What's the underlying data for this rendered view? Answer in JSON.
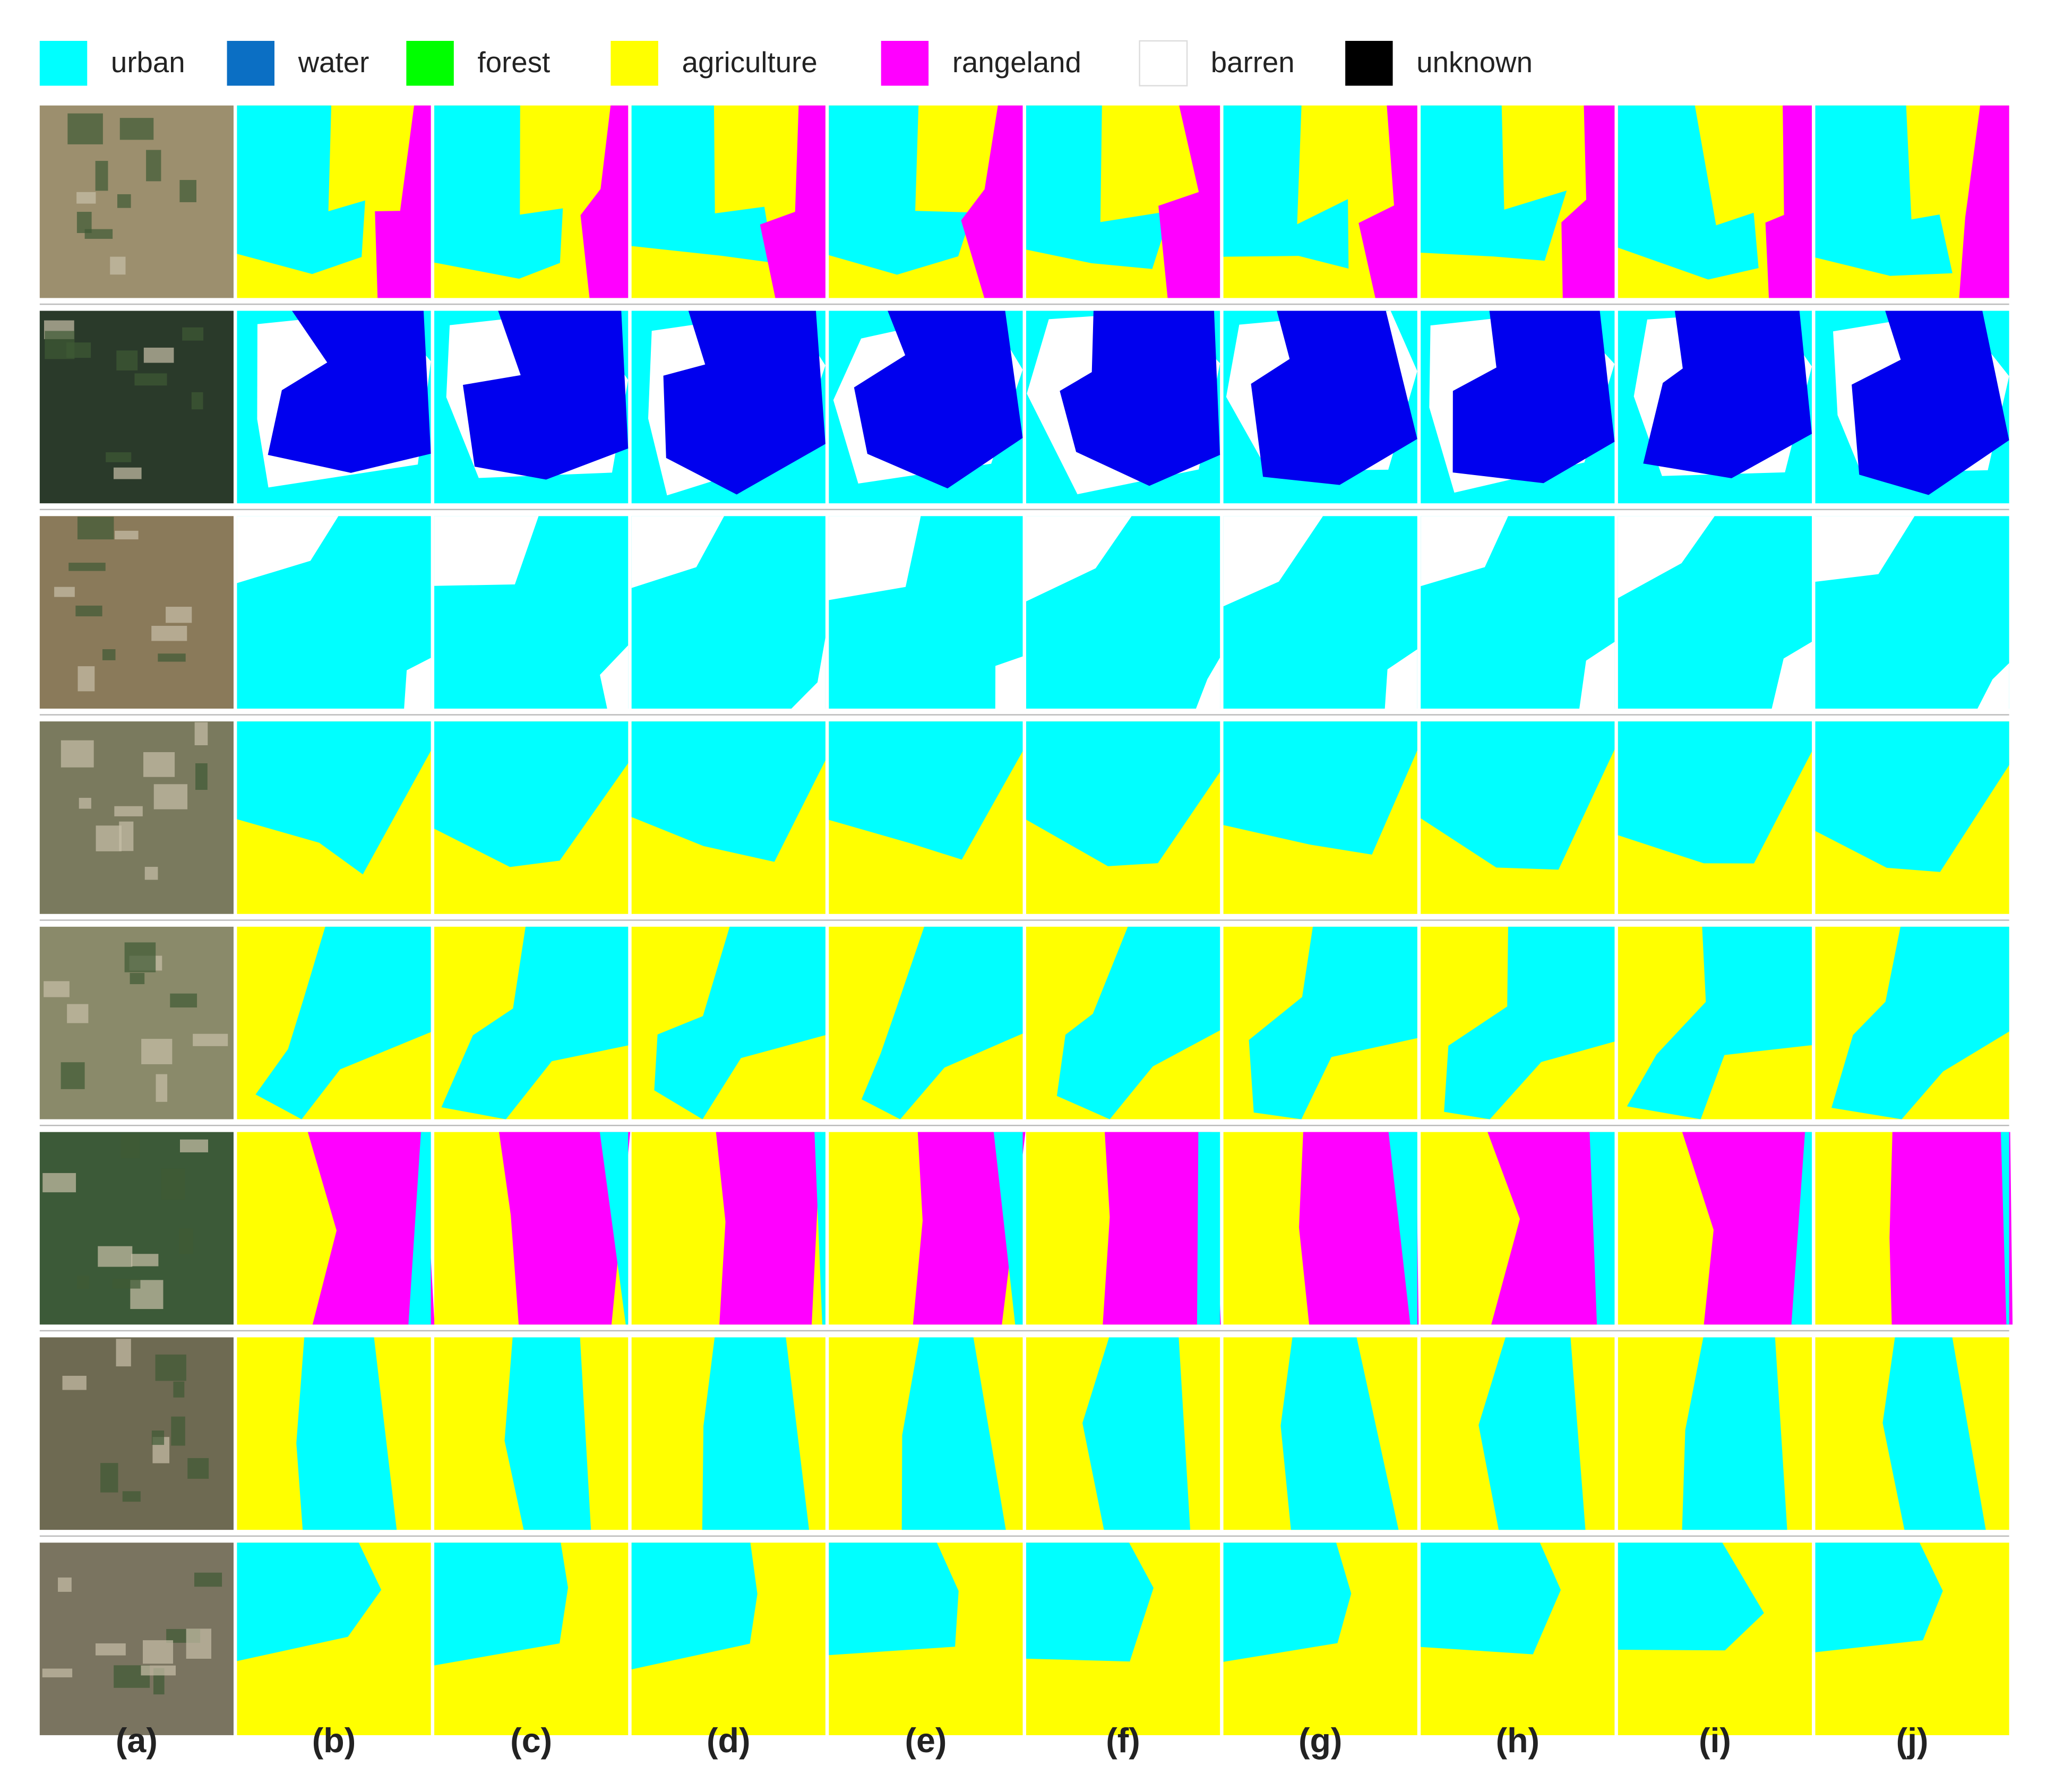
{
  "legend": [
    {
      "label": "urban",
      "color": "#00ffff"
    },
    {
      "label": "water",
      "color": "#0b6fc4"
    },
    {
      "label": "forest",
      "color": "#00ff00"
    },
    {
      "label": "agriculture",
      "color": "#ffff00"
    },
    {
      "label": "rangeland",
      "color": "#ff00ff"
    },
    {
      "label": "barren",
      "color": "#ffffff"
    },
    {
      "label": "unknown",
      "color": "#000000"
    }
  ],
  "columns": [
    "(a)",
    "(b)",
    "(c)",
    "(d)",
    "(e)",
    "(f)",
    "(g)",
    "(h)",
    "(i)",
    "(j)"
  ]
}
